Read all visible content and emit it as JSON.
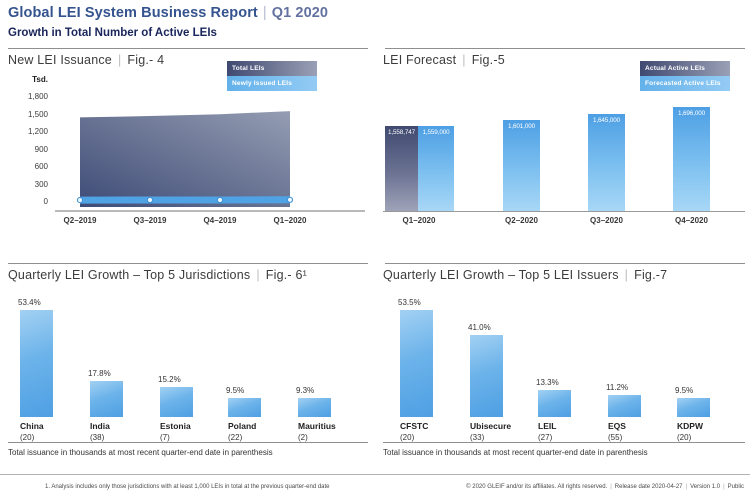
{
  "header": {
    "title": "Global LEI System Business Report",
    "separator": "|",
    "period": "Q1 2020",
    "subtitle": "Growth in Total Number of Active LEIs"
  },
  "colors": {
    "brand_blue": "#35548f",
    "navy": "#19255b",
    "bar_light_blue": "#4e9fe3",
    "bar_dark_navy": "#404a70",
    "line_blue": "#4fa3e5"
  },
  "fig4": {
    "title": "New LEI Issuance",
    "sep": "|",
    "fig_label": "Fig.- 4",
    "unit_label": "Tsd.",
    "y_ticks": [
      "1,800",
      "1,500",
      "1,200",
      "900",
      "600",
      "300",
      "0"
    ],
    "legend": [
      {
        "label": "Total LEIs",
        "type": "dark"
      },
      {
        "label": "Newly Issued LEIs",
        "type": "light"
      }
    ],
    "chart_data": {
      "type": "area",
      "x": [
        "Q2–2019",
        "Q3–2019",
        "Q4–2019",
        "Q1–2020"
      ],
      "series": [
        {
          "name": "Total LEIs",
          "values": [
            1450,
            1474,
            1506,
            1559
          ]
        },
        {
          "name": "Newly Issued LEIs",
          "values": [
            33,
            34,
            35,
            38
          ]
        }
      ],
      "ylabel": "Tsd.",
      "ylim": [
        0,
        1800
      ],
      "grid": false,
      "legend_position": "top-right"
    }
  },
  "fig5": {
    "title": "LEI Forecast",
    "sep": "|",
    "fig_label": "Fig.-5",
    "legend": [
      {
        "label": "Actual Active LEIs",
        "type": "dark"
      },
      {
        "label": "Forecasted Active LEIs",
        "type": "light"
      }
    ],
    "chart_data": {
      "type": "bar",
      "categories": [
        "Q1–2020",
        "Q2–2020",
        "Q3–2020",
        "Q4–2020"
      ],
      "series": [
        {
          "name": "Actual Active LEIs",
          "values": [
            1558747,
            null,
            null,
            null
          ],
          "labels": [
            "1,558,747",
            "",
            "",
            ""
          ]
        },
        {
          "name": "Forecasted Active LEIs",
          "values": [
            1559000,
            1601000,
            1645000,
            1696000
          ],
          "labels": [
            "1,559,000",
            "1,601,000",
            "1,645,000",
            "1,696,000"
          ]
        }
      ],
      "ylim": [
        960000,
        1700000
      ],
      "grid": false,
      "legend_position": "top-right"
    }
  },
  "fig6": {
    "title": "Quarterly LEI Growth – Top 5 Jurisdictions",
    "sep": "|",
    "fig_label": "Fig.- 6¹",
    "note": "Total issuance in thousands at most recent quarter-end date in parenthesis",
    "chart_data": {
      "type": "bar",
      "categories": [
        "China",
        "India",
        "Estonia",
        "Poland",
        "Mauritius"
      ],
      "values": [
        53.4,
        17.8,
        15.2,
        9.5,
        9.3
      ],
      "value_labels": [
        "53.4%",
        "17.8%",
        "15.2%",
        "9.5%",
        "9.3%"
      ],
      "category_sublabels": [
        "(20)",
        "(38)",
        "(7)",
        "(22)",
        "(2)"
      ],
      "ylim": [
        0,
        62
      ],
      "grid": false
    }
  },
  "fig7": {
    "title": "Quarterly LEI Growth – Top 5 LEI Issuers",
    "sep": "|",
    "fig_label": "Fig.-7",
    "note": "Total issuance in thousands at most recent quarter-end date in parenthesis",
    "chart_data": {
      "type": "bar",
      "categories": [
        "CFSTC",
        "Ubisecure",
        "LEIL",
        "EQS",
        "KDPW"
      ],
      "values": [
        53.5,
        41.0,
        13.3,
        11.2,
        9.5
      ],
      "value_labels": [
        "53.5%",
        "41.0%",
        "13.3%",
        "11.2%",
        "9.5%"
      ],
      "category_sublabels": [
        "(20)",
        "(33)",
        "(27)",
        "(55)",
        "(20)"
      ],
      "ylim": [
        0,
        62
      ],
      "grid": false
    }
  },
  "footer": {
    "footnote": "1. Analysis includes only those jurisdictions with at least 1,000 LEIs in total at the previous quarter-end date",
    "copyright": "© 2020 GLEIF and/or its affiliates. All rights reserved.",
    "separator": "|",
    "release": "Release date 2020-04-27",
    "version": "Version 1.0",
    "visibility": "Public"
  }
}
